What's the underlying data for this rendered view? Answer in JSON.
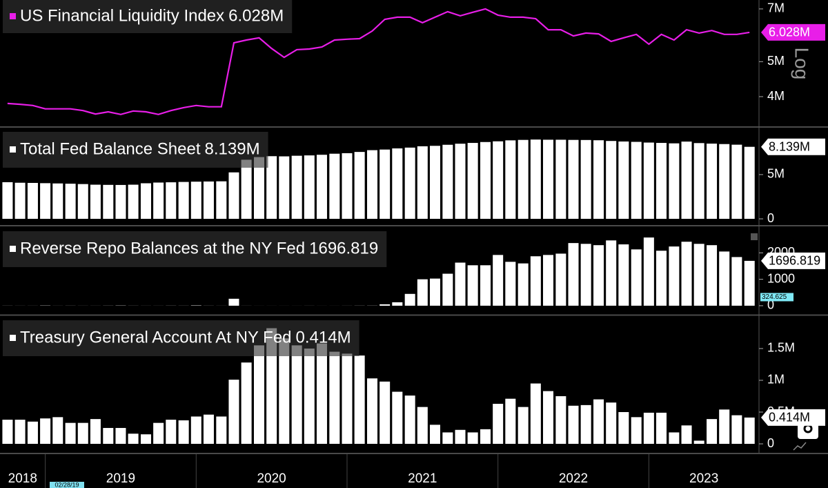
{
  "x_axis": {
    "x": [
      2018.75,
      2018.833,
      2018.917,
      2019,
      2019.083,
      2019.167,
      2019.25,
      2019.333,
      2019.417,
      2019.5,
      2019.583,
      2019.667,
      2019.75,
      2019.833,
      2019.917,
      2020,
      2020.083,
      2020.167,
      2020.25,
      2020.333,
      2020.417,
      2020.5,
      2020.583,
      2020.667,
      2020.75,
      2020.833,
      2020.917,
      2021,
      2021.083,
      2021.167,
      2021.25,
      2021.333,
      2021.417,
      2021.5,
      2021.583,
      2021.667,
      2021.75,
      2021.833,
      2021.917,
      2022,
      2022.083,
      2022.167,
      2022.25,
      2022.333,
      2022.417,
      2022.5,
      2022.583,
      2022.667,
      2022.75,
      2022.833,
      2022.917,
      2023,
      2023.083,
      2023.167,
      2023.25,
      2023.333,
      2023.417,
      2023.5,
      2023.583,
      2023.667
    ],
    "xlim": [
      2018.7,
      2023.73
    ],
    "xticks": [
      2019,
      2020,
      2021,
      2022,
      2023
    ],
    "labels": [
      "2018",
      "2019",
      "2020",
      "2021",
      "2022",
      "2023"
    ],
    "cursor_label": "02/28/19"
  },
  "chart_data": [
    {
      "type": "line",
      "log": true,
      "scale_label": "Log",
      "ylim": [
        3.31,
        7.41
      ],
      "yticks": [
        {
          "value": 4,
          "label": "4M"
        },
        {
          "value": 5,
          "label": "5M"
        },
        {
          "value": 7,
          "label": "7M"
        }
      ],
      "series": [
        {
          "name": "US Financial Liquidity Index",
          "color": "#e81ee8",
          "last_label": "6.028M",
          "values": [
            3.83,
            3.81,
            3.78,
            3.7,
            3.7,
            3.7,
            3.66,
            3.58,
            3.63,
            3.57,
            3.65,
            3.63,
            3.57,
            3.66,
            3.73,
            3.78,
            3.75,
            3.75,
            5.64,
            5.74,
            5.82,
            5.44,
            5.14,
            5.4,
            5.42,
            5.49,
            5.74,
            5.77,
            5.79,
            6.08,
            6.55,
            6.64,
            6.64,
            6.41,
            6.64,
            6.88,
            6.7,
            6.85,
            7.0,
            6.73,
            6.64,
            6.64,
            6.58,
            6.13,
            6.13,
            5.89,
            6.0,
            5.97,
            5.69,
            5.82,
            5.95,
            5.59,
            5.95,
            5.74,
            6.13,
            6.0,
            6.1,
            5.95,
            5.95,
            6.028
          ]
        }
      ]
    },
    {
      "type": "bar",
      "ylim": [
        -0.62,
        10.3
      ],
      "yticks": [
        0,
        {
          "value": 5,
          "label": "5M"
        }
      ],
      "series": [
        {
          "name": "Total Fed Balance Sheet",
          "color": "#ffffff",
          "last_label": "8.139M",
          "values": [
            4.14,
            4.08,
            4.06,
            4.03,
            4.0,
            3.97,
            3.93,
            3.86,
            3.84,
            3.83,
            3.86,
            4.02,
            4.1,
            4.13,
            4.17,
            4.2,
            4.22,
            4.24,
            5.25,
            6.68,
            6.98,
            7.08,
            7.06,
            7.13,
            7.17,
            7.24,
            7.36,
            7.42,
            7.56,
            7.76,
            7.83,
            7.96,
            8.05,
            8.2,
            8.25,
            8.37,
            8.49,
            8.58,
            8.68,
            8.76,
            8.87,
            8.92,
            8.96,
            8.94,
            8.94,
            8.92,
            8.91,
            8.88,
            8.8,
            8.74,
            8.7,
            8.62,
            8.58,
            8.53,
            8.73,
            8.56,
            8.5,
            8.45,
            8.38,
            8.139
          ]
        }
      ]
    },
    {
      "type": "bar",
      "ylim": [
        -316,
        2974
      ],
      "yticks": [
        0,
        1000,
        2000
      ],
      "marker_value": 324.625,
      "series": [
        {
          "name": "Reverse Repo Balances at the NY Fed",
          "color": "#ffffff",
          "last_label": "1696.819",
          "values": [
            3,
            2,
            2,
            8,
            2,
            3,
            2,
            2,
            4,
            8,
            3,
            2,
            2,
            4,
            3,
            12,
            3,
            2,
            263,
            2,
            1,
            1,
            1,
            1,
            2,
            1,
            1,
            2,
            4,
            5,
            53,
            130,
            447,
            1000,
            1026,
            1210,
            1630,
            1530,
            1530,
            1920,
            1660,
            1600,
            1870,
            1920,
            1970,
            2370,
            2340,
            2290,
            2470,
            2320,
            2130,
            2580,
            2080,
            2240,
            2420,
            2340,
            2290,
            2050,
            1840,
            1696.819
          ]
        }
      ]
    },
    {
      "type": "bar",
      "ylim": [
        -0.13,
        2.01
      ],
      "yticks": [
        0,
        {
          "value": 0.5,
          "label": "0.5M"
        },
        {
          "value": 1,
          "label": "1M"
        },
        {
          "value": 1.5,
          "label": "1.5M"
        }
      ],
      "series": [
        {
          "name": "Treasury General Account At NY Fed",
          "color": "#ffffff",
          "last_label": "0.414M",
          "values": [
            0.38,
            0.38,
            0.35,
            0.4,
            0.42,
            0.33,
            0.33,
            0.39,
            0.25,
            0.25,
            0.16,
            0.15,
            0.33,
            0.38,
            0.37,
            0.43,
            0.46,
            0.43,
            1.01,
            1.28,
            1.55,
            1.82,
            1.66,
            1.55,
            1.5,
            1.58,
            1.45,
            1.42,
            1.39,
            1.03,
            0.98,
            0.82,
            0.76,
            0.58,
            0.3,
            0.18,
            0.22,
            0.18,
            0.23,
            0.63,
            0.71,
            0.58,
            0.95,
            0.83,
            0.75,
            0.6,
            0.61,
            0.7,
            0.65,
            0.5,
            0.42,
            0.49,
            0.49,
            0.18,
            0.29,
            0.05,
            0.39,
            0.54,
            0.45,
            0.414
          ]
        }
      ]
    }
  ]
}
